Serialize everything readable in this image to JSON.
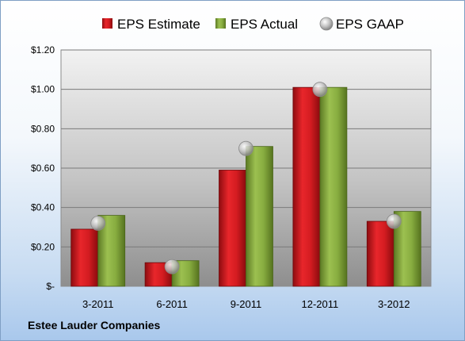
{
  "chart_data": {
    "type": "bar",
    "title": "",
    "xlabel": "",
    "ylabel": "",
    "categories": [
      "3-2011",
      "6-2011",
      "9-2011",
      "12-2011",
      "3-2012"
    ],
    "series": [
      {
        "name": "EPS Estimate",
        "kind": "bar",
        "color": "#c0151b",
        "values": [
          0.29,
          0.12,
          0.59,
          1.01,
          0.33
        ]
      },
      {
        "name": "EPS Actual",
        "kind": "bar",
        "color": "#7e9f3a",
        "values": [
          0.36,
          0.13,
          0.71,
          1.01,
          0.38
        ]
      },
      {
        "name": "EPS GAAP",
        "kind": "marker",
        "color": "#b4b4b4",
        "values": [
          0.32,
          0.1,
          0.7,
          1.0,
          0.33
        ]
      }
    ],
    "ylim": [
      0,
      1.2
    ],
    "yticks": [
      0,
      0.2,
      0.4,
      0.6,
      0.8,
      1.0,
      1.2
    ],
    "ytick_labels": [
      "$-",
      "$0.20",
      "$0.40",
      "$0.60",
      "$0.80",
      "$1.00",
      "$1.20"
    ],
    "grid": true,
    "legend_position": "top"
  },
  "footer": {
    "company": "Estee Lauder Companies"
  }
}
